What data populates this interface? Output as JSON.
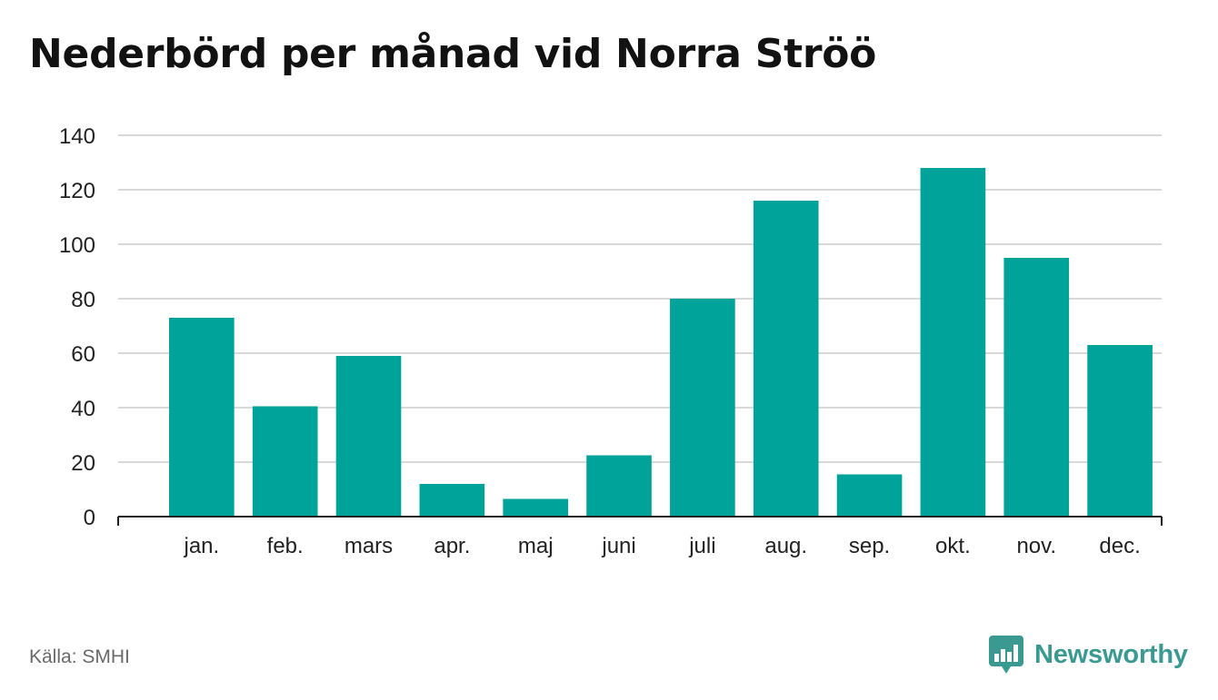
{
  "title": "Nederbörd per månad vid Norra Ströö",
  "source": "Källa: SMHI",
  "brand": {
    "name": "Newsworthy",
    "icon": "bar-chart-speech-bubble-icon",
    "color": "#3a9a91"
  },
  "colors": {
    "bar": "#00a39a",
    "grid": "#d9d9d9",
    "axis": "#222222"
  },
  "chart_data": {
    "type": "bar",
    "categories": [
      "jan.",
      "feb.",
      "mars",
      "apr.",
      "maj",
      "juni",
      "juli",
      "aug.",
      "sep.",
      "okt.",
      "nov.",
      "dec."
    ],
    "values": [
      73,
      40.5,
      59,
      12,
      6.5,
      22.5,
      80,
      116,
      15.5,
      128,
      95,
      63
    ],
    "ylim": [
      0,
      140
    ],
    "yticks": [
      0,
      20,
      40,
      60,
      80,
      100,
      120,
      140
    ],
    "grid": true,
    "legend": "none",
    "xlabel": "",
    "ylabel": ""
  }
}
